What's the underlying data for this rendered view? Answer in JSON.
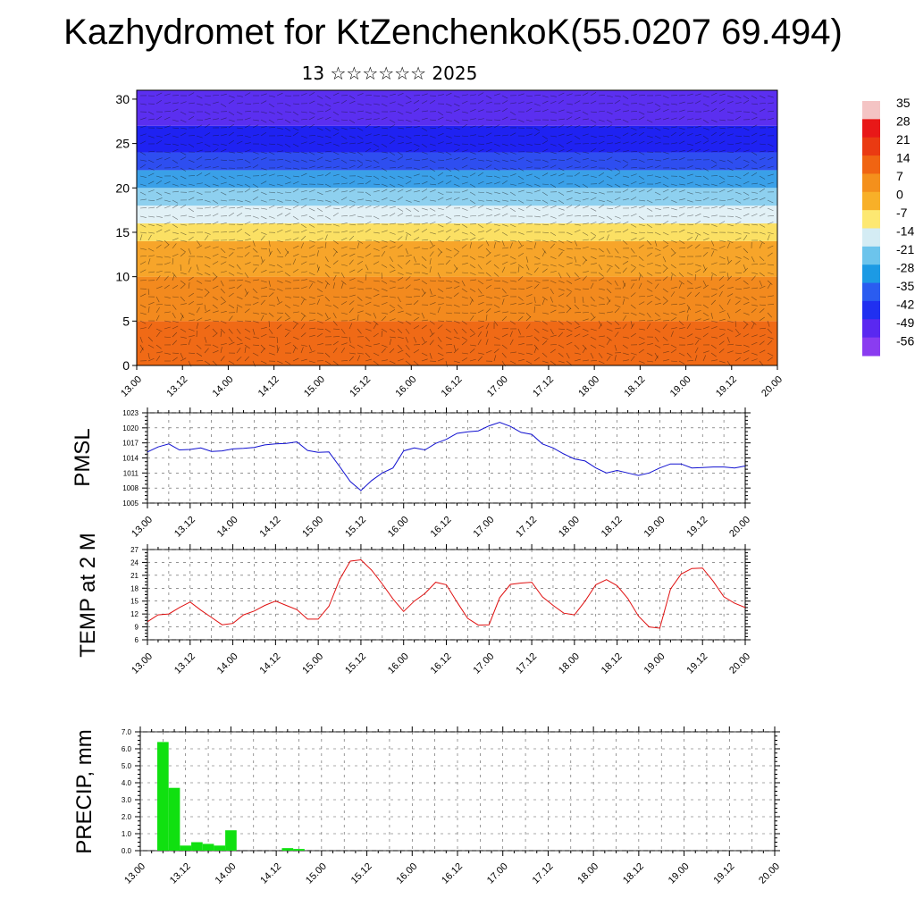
{
  "title": "Kazhydromet for KtZenchenkoK(55.0207 69.494)",
  "subtitle": "13 ☆☆☆☆☆☆ 2025",
  "time_ticks": [
    "13.00",
    "13.12",
    "14.00",
    "14.12",
    "15.00",
    "15.12",
    "16.00",
    "16.12",
    "17.00",
    "17.12",
    "18.00",
    "18.12",
    "19.00",
    "19.12",
    "20.00"
  ],
  "chart_data": [
    {
      "type": "heatmap",
      "name_hint": "cross-section",
      "ylim": [
        0,
        30
      ],
      "yticks": [
        0,
        5,
        10,
        15,
        20,
        25,
        30
      ],
      "colorbar": {
        "labels": [
          "35",
          "28",
          "21",
          "14",
          "7",
          "0",
          "-7",
          "-14",
          "-21",
          "-28",
          "-35",
          "-42",
          "-49",
          "-56"
        ],
        "colors": [
          "#f4c4c4",
          "#e81818",
          "#ea3a12",
          "#f06412",
          "#f4901c",
          "#f8b028",
          "#fde872",
          "#d4ecf4",
          "#6cc4ec",
          "#1c9ae4",
          "#2a5cf0",
          "#2030f0",
          "#5a28f0",
          "#8a3cf0"
        ]
      },
      "bands": [
        {
          "y0": 0,
          "y1": 5,
          "color": "#f06a16"
        },
        {
          "y0": 5,
          "y1": 10,
          "color": "#f38a1e"
        },
        {
          "y0": 10,
          "y1": 14,
          "color": "#f7a52a"
        },
        {
          "y0": 14,
          "y1": 16,
          "color": "#fbe064"
        },
        {
          "y0": 16,
          "y1": 18,
          "color": "#e2f1f6"
        },
        {
          "y0": 18,
          "y1": 20,
          "color": "#8ed0ef"
        },
        {
          "y0": 20,
          "y1": 22,
          "color": "#3aa0e8"
        },
        {
          "y0": 22,
          "y1": 24,
          "color": "#2e4ef0"
        },
        {
          "y0": 24,
          "y1": 27,
          "color": "#1f22f2"
        },
        {
          "y0": 27,
          "y1": 31,
          "color": "#5b2ff0"
        }
      ]
    },
    {
      "type": "line",
      "ylabel": "PMSL",
      "ylim": [
        1005,
        1023
      ],
      "yticks": [
        1005,
        1008,
        1011,
        1014,
        1017,
        1020,
        1023
      ],
      "color": "#1010d0",
      "x": [
        0,
        3,
        6,
        9,
        12,
        15,
        18,
        21,
        24,
        27,
        30,
        33,
        36,
        39,
        42,
        45,
        48,
        51,
        54,
        57,
        60,
        63,
        66,
        69,
        72,
        75,
        78,
        81,
        84,
        87,
        90,
        93,
        96,
        99,
        102,
        105,
        108,
        111,
        114,
        117,
        120,
        123,
        126,
        129,
        132,
        135,
        138,
        141,
        144,
        147,
        150,
        153,
        156,
        159,
        162,
        165,
        168
      ],
      "values": [
        1015.2,
        1016.2,
        1016.8,
        1015.6,
        1015.7,
        1016.0,
        1015.3,
        1015.4,
        1015.8,
        1015.9,
        1016.1,
        1016.6,
        1016.8,
        1016.9,
        1017.2,
        1015.5,
        1015.1,
        1015.2,
        1012.3,
        1009.3,
        1007.5,
        1009.5,
        1011.0,
        1012.0,
        1015.4,
        1016.0,
        1015.6,
        1016.9,
        1017.7,
        1018.9,
        1019.2,
        1019.4,
        1020.4,
        1021.1,
        1020.3,
        1019.1,
        1018.7,
        1016.8,
        1016.0,
        1014.8,
        1013.8,
        1013.4,
        1012.0,
        1011.0,
        1011.5,
        1011.0,
        1010.5,
        1011.0,
        1012.0,
        1012.8,
        1012.8,
        1012.0,
        1012.1,
        1012.2,
        1012.2,
        1012.0,
        1012.4
      ]
    },
    {
      "type": "line",
      "ylabel": "TEMP at 2 M",
      "ylim": [
        6,
        27
      ],
      "yticks": [
        6,
        9,
        12,
        15,
        18,
        21,
        24,
        27
      ],
      "color": "#e01010",
      "x": [
        0,
        3,
        6,
        9,
        12,
        15,
        18,
        21,
        24,
        27,
        30,
        33,
        36,
        39,
        42,
        45,
        48,
        51,
        54,
        57,
        60,
        63,
        66,
        69,
        72,
        75,
        78,
        81,
        84,
        87,
        90,
        93,
        96,
        99,
        102,
        105,
        108,
        111,
        114,
        117,
        120,
        123,
        126,
        129,
        132,
        135,
        138,
        141,
        144,
        147,
        150,
        153,
        156,
        159,
        162,
        165,
        168
      ],
      "values": [
        10.2,
        11.8,
        12.0,
        13.5,
        14.8,
        12.9,
        11.2,
        9.5,
        9.8,
        11.8,
        12.7,
        14.0,
        15.0,
        14.0,
        13.0,
        10.8,
        10.8,
        13.8,
        20.0,
        24.3,
        24.6,
        22.2,
        19.0,
        15.5,
        12.6,
        15.0,
        16.8,
        19.4,
        18.8,
        14.8,
        11.0,
        9.4,
        9.5,
        15.8,
        18.9,
        19.2,
        19.4,
        16.0,
        14.0,
        12.2,
        11.8,
        15.0,
        18.8,
        20.0,
        18.6,
        15.6,
        11.5,
        9.0,
        8.7,
        17.8,
        21.3,
        22.6,
        22.7,
        19.6,
        16.0,
        14.5,
        13.5
      ]
    },
    {
      "type": "bar",
      "ylabel": "PRECIP, mm",
      "ylim": [
        0,
        7
      ],
      "yticks": [
        "0.0",
        "1.0",
        "2.0",
        "3.0",
        "4.0",
        "5.0",
        "6.0",
        "7.0"
      ],
      "color": "#10e010",
      "x": [
        6,
        9,
        12,
        15,
        18,
        21,
        24,
        27,
        39,
        42
      ],
      "values": [
        6.4,
        3.7,
        0.3,
        0.5,
        0.4,
        0.3,
        1.2,
        0.0,
        0.15,
        0.1
      ]
    }
  ]
}
